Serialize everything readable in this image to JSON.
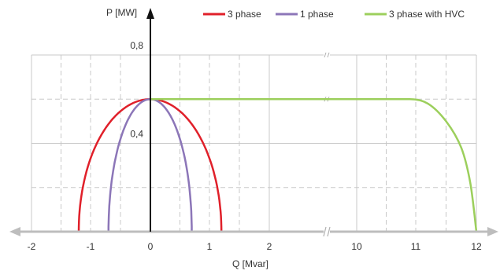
{
  "chart_data": {
    "type": "line",
    "title": "",
    "xlabel": "Q [Mvar]",
    "ylabel": "P [MW]",
    "x_ticks": [
      "-2",
      "-1",
      "0",
      "1",
      "2",
      "10",
      "11",
      "12"
    ],
    "x_tick_values": [
      -2,
      -1,
      0,
      1,
      2,
      10,
      11,
      12
    ],
    "x_axis_break": [
      2.9,
      9.2
    ],
    "y_ticks": [
      "0,4",
      "0,8"
    ],
    "y_tick_values": [
      0.4,
      0.8
    ],
    "ylim": [
      0,
      0.8
    ],
    "grid": true,
    "legend_position": "top-right",
    "series": [
      {
        "name": "3 phase",
        "color": "#e0202a",
        "shape": "half-ellipse",
        "q_min": -1.2,
        "q_max": 1.2,
        "p_peak": 0.6
      },
      {
        "name": "1 phase",
        "color": "#8c76b8",
        "shape": "half-ellipse",
        "q_min": -0.7,
        "q_max": 0.7,
        "p_peak": 0.6
      },
      {
        "name": "3 phase with HVC",
        "color": "#9ccf5c",
        "shape": "flat-then-drop",
        "points": [
          [
            0,
            0.6
          ],
          [
            10.9,
            0.6
          ],
          [
            11.2,
            0.58
          ],
          [
            11.5,
            0.5
          ],
          [
            11.75,
            0.38
          ],
          [
            11.9,
            0.22
          ],
          [
            12.0,
            0.0
          ]
        ]
      }
    ]
  }
}
